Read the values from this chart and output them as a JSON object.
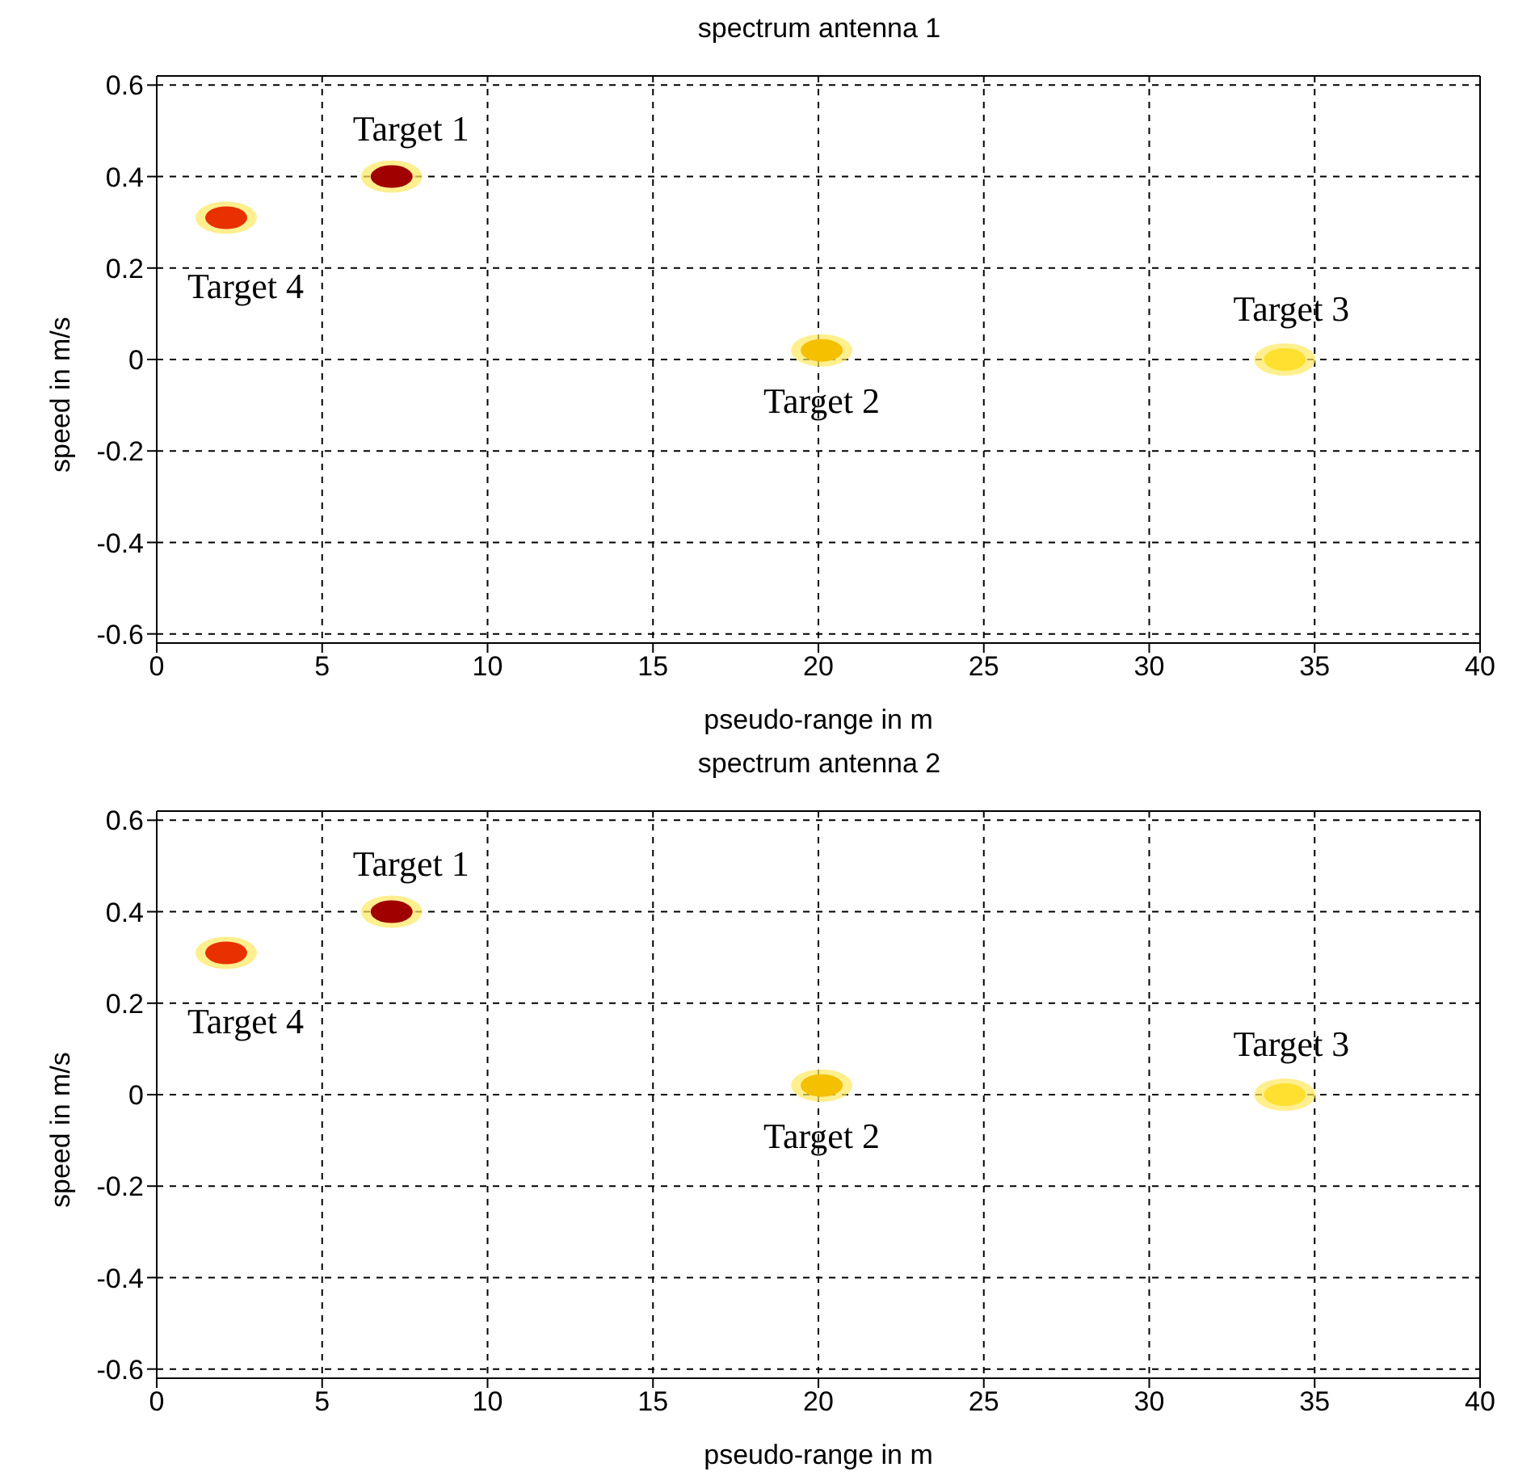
{
  "chart_data": [
    {
      "type": "scatter",
      "title": "spectrum antenna 1",
      "xlabel": "pseudo-range in m",
      "ylabel": "speed in m/s",
      "x": [
        2.1,
        7.1,
        20.1,
        34.1
      ],
      "values": [
        0.31,
        0.4,
        0.02,
        0.0
      ],
      "colors": [
        "#e83000",
        "#a00000",
        "#f5c000",
        "#ffe030"
      ],
      "xlim": [
        0,
        40
      ],
      "xticks": [
        0,
        5,
        10,
        15,
        20,
        25,
        30,
        35,
        40
      ],
      "ylim": [
        -0.62,
        0.62
      ],
      "yticks": [
        -0.6,
        -0.4,
        -0.2,
        0,
        0.2,
        0.4,
        0.6
      ],
      "grid": true,
      "legend": false,
      "annotations": [
        {
          "text": "Target 1",
          "x": 7.1,
          "y": 0.4
        },
        {
          "text": "Target 4",
          "x": 2.1,
          "y": 0.31
        },
        {
          "text": "Target 2",
          "x": 20.1,
          "y": 0.02
        },
        {
          "text": "Target 3",
          "x": 34.1,
          "y": 0.0
        }
      ]
    },
    {
      "type": "scatter",
      "title": "spectrum antenna 2",
      "xlabel": "pseudo-range in m",
      "ylabel": "speed in m/s",
      "x": [
        2.1,
        7.1,
        20.1,
        34.1
      ],
      "values": [
        0.31,
        0.4,
        0.02,
        0.0
      ],
      "colors": [
        "#e83000",
        "#a00000",
        "#f5c000",
        "#ffe030"
      ],
      "xlim": [
        0,
        40
      ],
      "xticks": [
        0,
        5,
        10,
        15,
        20,
        25,
        30,
        35,
        40
      ],
      "ylim": [
        -0.62,
        0.62
      ],
      "yticks": [
        -0.6,
        -0.4,
        -0.2,
        0,
        0.2,
        0.4,
        0.6
      ],
      "grid": true,
      "legend": false,
      "annotations": [
        {
          "text": "Target 1",
          "x": 7.1,
          "y": 0.4
        },
        {
          "text": "Target 4",
          "x": 2.1,
          "y": 0.31
        },
        {
          "text": "Target 2",
          "x": 20.1,
          "y": 0.02
        },
        {
          "text": "Target 3",
          "x": 34.1,
          "y": 0.0
        }
      ]
    }
  ]
}
